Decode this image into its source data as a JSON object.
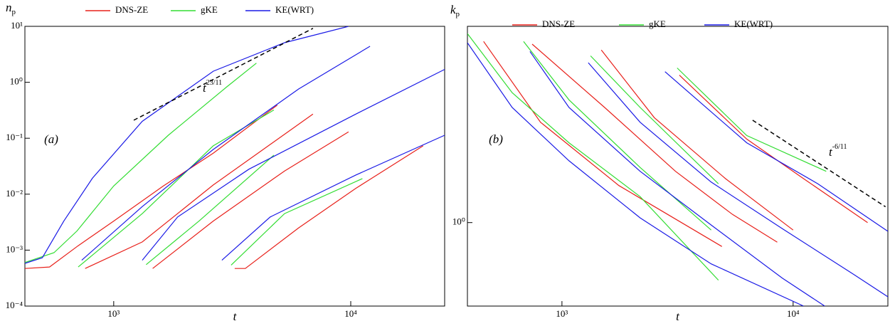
{
  "chart_data": [
    {
      "type": "line",
      "panel_label": "(a)",
      "x_label": "t",
      "y_label": "n",
      "y_label_sub": "p",
      "log_x": true,
      "log_y": true,
      "legend": "top",
      "xlim": [
        422,
        24900
      ],
      "ylim": [
        0.0001,
        10
      ],
      "xticks": [
        {
          "value": 1000,
          "label": "10³"
        },
        {
          "value": 10000,
          "label": "10⁴"
        }
      ],
      "yticks": [
        {
          "value": 0.0001,
          "label": "10⁻⁴"
        },
        {
          "value": 0.001,
          "label": "10⁻³"
        },
        {
          "value": 0.01,
          "label": "10⁻²"
        },
        {
          "value": 0.1,
          "label": "10⁻¹"
        },
        {
          "value": 1,
          "label": "10⁰"
        },
        {
          "value": 10,
          "label": "10¹"
        }
      ],
      "guide": {
        "x": [
          1215,
          6930
        ],
        "values": [
          0.21,
          9.2
        ],
        "text": "t",
        "exponent": "23/11"
      },
      "series": [
        {
          "name": "DNS-ZE",
          "color": "#e8201a",
          "curves": [
            {
              "x": [
                422,
                536,
                708,
                1000,
                1620,
                2630,
                4900
              ],
              "values": [
                0.00047,
                0.0005,
                0.0012,
                0.0033,
                0.014,
                0.054,
                0.39
              ]
            },
            {
              "x": [
                758,
                1320,
                2630,
                4270,
                6930
              ],
              "values": [
                0.00047,
                0.0014,
                0.0146,
                0.063,
                0.27
              ]
            },
            {
              "x": [
                1460,
                2630,
                5260,
                9790
              ],
              "values": [
                0.00047,
                0.0033,
                0.026,
                0.13
              ]
            },
            {
              "x": [
                3240,
                3590,
                6030,
                10500,
                20200
              ],
              "values": [
                0.00047,
                0.00047,
                0.0025,
                0.0127,
                0.073
              ]
            }
          ]
        },
        {
          "name": "gKE",
          "color": "#33dd33",
          "curves": [
            {
              "x": [
                422,
                560,
                700,
                1000,
                1700,
                3000,
                4000
              ],
              "values": [
                0.0006,
                0.0009,
                0.0022,
                0.014,
                0.113,
                0.83,
                2.2
              ]
            },
            {
              "x": [
                708,
                1320,
                2630,
                4740
              ],
              "values": [
                0.0005,
                0.0045,
                0.073,
                0.32
              ]
            },
            {
              "x": [
                1370,
                2290,
                4740
              ],
              "values": [
                0.00055,
                0.0033,
                0.05
              ]
            },
            {
              "x": [
                3130,
                5260,
                11200
              ],
              "values": [
                0.00054,
                0.0045,
                0.019
              ]
            }
          ]
        },
        {
          "name": "KE(WRT)",
          "color": "#1a1ae6",
          "curves": [
            {
              "x": [
                422,
                500,
                616,
                813,
                1319,
                2633,
                5256,
                9788
              ],
              "values": [
                0.00058,
                0.00073,
                0.0033,
                0.0193,
                0.2,
                1.58,
                5.1,
                10
              ]
            },
            {
              "x": [
                733,
                1320,
                2630,
                6030,
                12060
              ],
              "values": [
                0.00066,
                0.006,
                0.063,
                0.76,
                4.4
              ]
            },
            {
              "x": [
                1320,
                1860,
                3720,
                10500,
                24900
              ],
              "values": [
                0.00066,
                0.0039,
                0.028,
                0.27,
                1.7
              ]
            },
            {
              "x": [
                2860,
                4570,
                10500,
                24900
              ],
              "values": [
                0.00066,
                0.0039,
                0.022,
                0.113
              ]
            }
          ]
        }
      ]
    },
    {
      "type": "line",
      "panel_label": "(b)",
      "x_label": "t",
      "y_label": "k",
      "y_label_sub": "p",
      "log_x": true,
      "log_y": true,
      "legend": "top",
      "xlim": [
        390,
        25700
      ],
      "ylim": [
        0.5,
        5.1
      ],
      "xticks": [
        {
          "value": 1000,
          "label": "10³"
        },
        {
          "value": 10000,
          "label": "10⁴"
        }
      ],
      "yticks": [
        {
          "value": 1,
          "label": "10⁰"
        }
      ],
      "guide": {
        "x": [
          6680,
          25100
        ],
        "values": [
          2.34,
          1.14
        ],
        "text": "t",
        "exponent": "-6/11"
      },
      "series": [
        {
          "name": "DNS-ZE",
          "color": "#e8201a",
          "curves": [
            {
              "x": [
                458,
                808,
                1763,
                4920
              ],
              "values": [
                4.5,
                2.3,
                1.36,
                0.82
              ]
            },
            {
              "x": [
                743,
                1530,
                3100,
                5470,
                8540
              ],
              "values": [
                4.4,
                2.6,
                1.53,
                1.07,
                0.85
              ]
            },
            {
              "x": [
                1480,
                2510,
                5100,
                10000
              ],
              "values": [
                4.19,
                2.39,
                1.44,
                0.94
              ]
            },
            {
              "x": [
                3220,
                6300,
                11100,
                21000
              ],
              "values": [
                3.4,
                2.0,
                1.44,
                1.0
              ]
            }
          ]
        },
        {
          "name": "gKE",
          "color": "#33dd33",
          "curves": [
            {
              "x": [
                390,
                609,
                1073,
                2180,
                4750
              ],
              "values": [
                4.8,
                2.94,
                1.94,
                1.24,
                0.62
              ]
            },
            {
              "x": [
                682,
                1073,
                2180,
                4420
              ],
              "values": [
                4.5,
                2.77,
                1.58,
                0.94
              ]
            },
            {
              "x": [
                1330,
                2180,
                4750
              ],
              "values": [
                3.99,
                2.6,
                1.38
              ]
            },
            {
              "x": [
                3150,
                6300,
                13900
              ],
              "values": [
                3.61,
                2.06,
                1.53
              ]
            }
          ]
        },
        {
          "name": "KE(WRT)",
          "color": "#1a1ae6",
          "curves": [
            {
              "x": [
                390,
                609,
                1073,
                2180,
                4420,
                11100
              ],
              "values": [
                4.45,
                2.6,
                1.67,
                1.04,
                0.71,
                0.5
              ]
            },
            {
              "x": [
                727,
                1073,
                2180,
                4420,
                8990,
                13700
              ],
              "values": [
                4.14,
                2.6,
                1.53,
                0.98,
                0.63,
                0.5
              ]
            },
            {
              "x": [
                1300,
                2180,
                4420,
                8990,
                18300,
                25700
              ],
              "values": [
                3.77,
                2.3,
                1.4,
                0.95,
                0.65,
                0.54
              ]
            },
            {
              "x": [
                2790,
                6300,
                12800,
                25700
              ],
              "values": [
                3.5,
                1.94,
                1.38,
                0.93
              ]
            }
          ]
        }
      ]
    }
  ]
}
